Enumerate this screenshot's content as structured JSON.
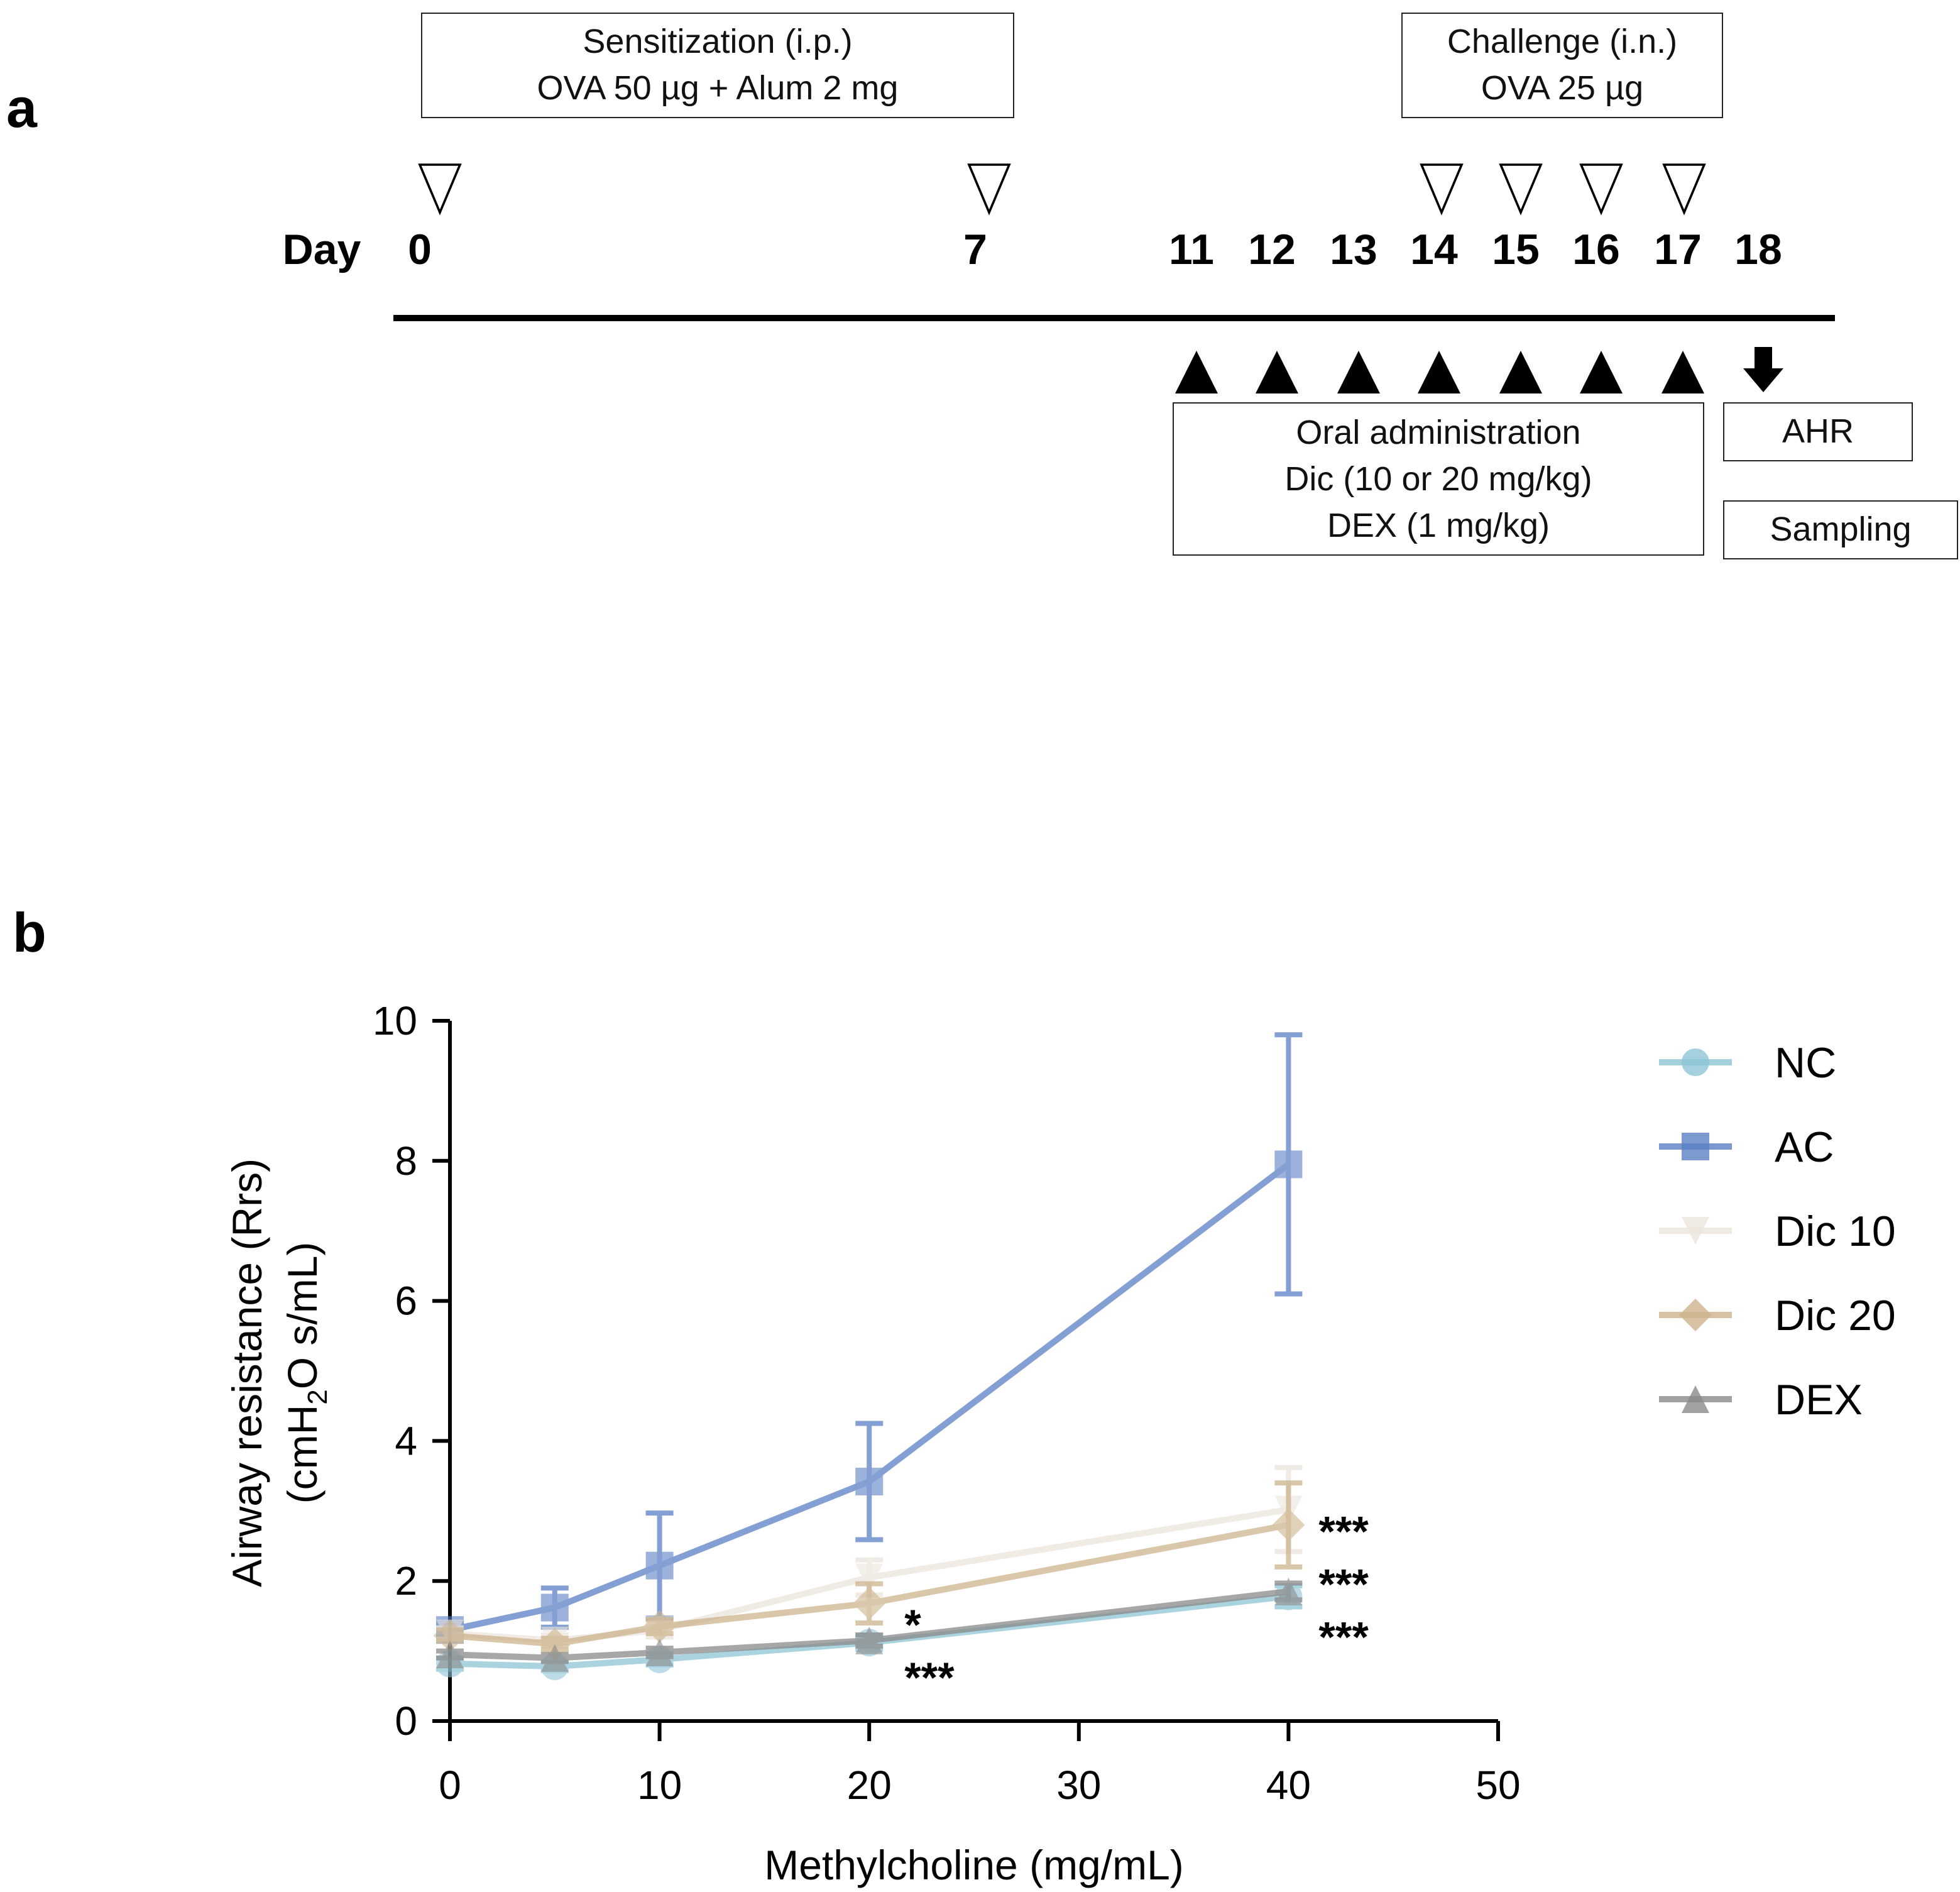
{
  "panel_a": {
    "label": "a",
    "sensitization": {
      "line1": "Sensitization (i.p.)",
      "line2": "OVA 50 µg + Alum 2 mg"
    },
    "challenge": {
      "line1": "Challenge (i.n.)",
      "line2": "OVA 25 µg"
    },
    "oral": {
      "line1": "Oral administration",
      "line2": "Dic (10 or 20 mg/kg)",
      "line3": "DEX (1 mg/kg)"
    },
    "ahr": "AHR",
    "sampling": "Sampling",
    "day_label": "Day",
    "days": [
      "0",
      "7",
      "11",
      "12",
      "13",
      "14",
      "15",
      "16",
      "17",
      "18"
    ],
    "sensitization_days": [
      0,
      7
    ],
    "challenge_days": [
      14,
      15,
      16,
      17
    ],
    "oral_days": [
      11,
      12,
      13,
      14,
      15,
      16,
      17
    ],
    "endpoint_day": 18
  },
  "panel_b": {
    "label": "b"
  },
  "chart_data": {
    "type": "line",
    "xlabel": "Methylcholine (mg/mL)",
    "ylabel_line1": "Airway resistance (Rrs)",
    "ylabel_line2_parts": [
      "(cmH",
      "2",
      "O s/mL)"
    ],
    "xlim": [
      0,
      50
    ],
    "ylim": [
      0,
      10
    ],
    "xticks": [
      "0",
      "10",
      "20",
      "30",
      "40",
      "50"
    ],
    "yticks": [
      "0",
      "2",
      "4",
      "6",
      "8",
      "10"
    ],
    "grid": false,
    "legend_position": "right",
    "x": [
      0,
      5,
      10,
      20,
      40
    ],
    "series": [
      {
        "name": "NC",
        "marker": "circle",
        "color": "#8ec5d6",
        "values": [
          0.82,
          0.78,
          0.88,
          1.12,
          1.78
        ],
        "err": [
          0.08,
          0.06,
          0.08,
          0.1,
          0.15
        ]
      },
      {
        "name": "AC",
        "marker": "square",
        "color": "#5b7fc4",
        "values": [
          1.3,
          1.62,
          2.22,
          3.42,
          7.95
        ],
        "err": [
          0.1,
          0.28,
          0.75,
          0.83,
          1.85
        ]
      },
      {
        "name": "Dic 10",
        "marker": "triangle-down",
        "color": "#ebe5db",
        "values": [
          1.25,
          1.15,
          1.3,
          2.05,
          3.02
        ],
        "err": [
          0.08,
          0.08,
          0.1,
          0.25,
          0.6
        ]
      },
      {
        "name": "Dic 20",
        "marker": "diamond",
        "color": "#cdb48c",
        "values": [
          1.22,
          1.1,
          1.35,
          1.68,
          2.8
        ],
        "err": [
          0.08,
          0.08,
          0.1,
          0.28,
          0.6
        ]
      },
      {
        "name": "DEX",
        "marker": "triangle-up",
        "color": "#8a8a8a",
        "values": [
          0.95,
          0.9,
          0.98,
          1.15,
          1.85
        ],
        "err": [
          0.05,
          0.05,
          0.06,
          0.08,
          0.12
        ]
      }
    ],
    "annotations": [
      {
        "x": 40,
        "y": 2.75,
        "text": "***"
      },
      {
        "x": 40,
        "y": 2.33,
        "text": "***"
      },
      {
        "x": 40,
        "y": 1.75,
        "text": "***"
      },
      {
        "x": 20,
        "y": 1.42,
        "text": "*"
      },
      {
        "x": 20,
        "y": 1.1,
        "text": "***"
      }
    ]
  }
}
